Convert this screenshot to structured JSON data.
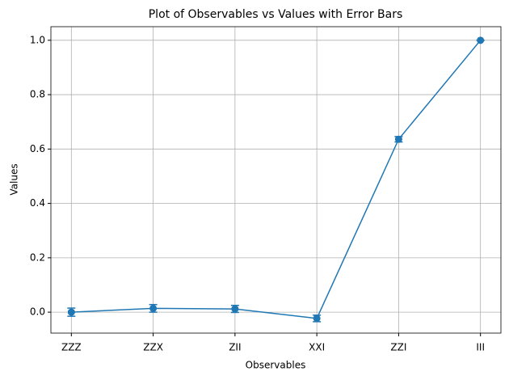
{
  "chart_data": {
    "type": "line",
    "title": "Plot of Observables vs Values with Error Bars",
    "x_label": "Observables",
    "y_label": "Values",
    "categories": [
      "ZZZ",
      "ZZX",
      "ZII",
      "XXI",
      "ZZI",
      "III"
    ],
    "values": [
      0.0,
      0.014,
      0.012,
      -0.023,
      0.636,
      1.0
    ],
    "errors": [
      0.015,
      0.014,
      0.013,
      0.012,
      0.01,
      0.0
    ],
    "color": "#1f77b4",
    "ylim": [
      -0.077,
      1.05
    ],
    "yticks": [
      {
        "value": 0,
        "label": "0.0"
      },
      0.2,
      0.4,
      0.6,
      0.8,
      {
        "value": 1,
        "label": "1.0"
      }
    ],
    "grid": true
  }
}
